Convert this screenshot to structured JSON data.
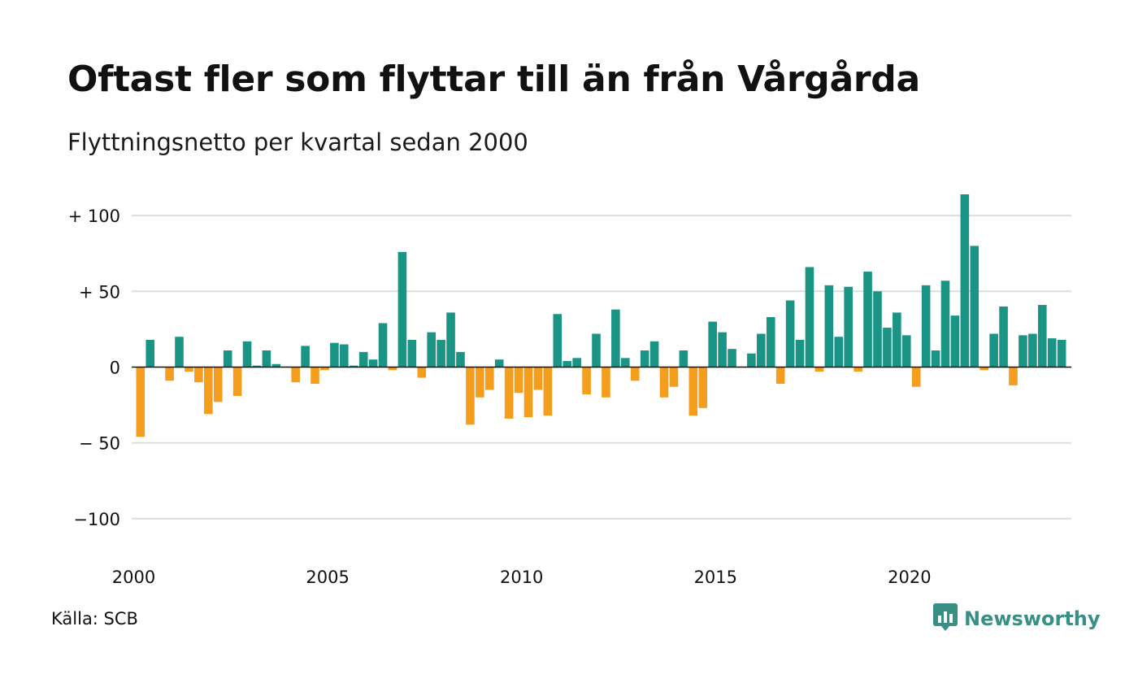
{
  "title": "Oftast fler som flyttar till än från Vårgårda",
  "subtitle": "Flyttningsnetto per kvartal sedan 2000",
  "source": "Källa: SCB",
  "brand": {
    "name": "Newsworthy",
    "icon": "newsworthy-logo-icon",
    "color": "#3a8f84"
  },
  "colors": {
    "positive": "#1a9485",
    "negative": "#f59e1e",
    "grid": "#dddddd",
    "zero_line": "#111111"
  },
  "chart_data": {
    "type": "bar",
    "x_start": 2000,
    "periods_per_year": 4,
    "y_ticks": [
      {
        "value": 100,
        "label": "+ 100"
      },
      {
        "value": 50,
        "label": "+  50"
      },
      {
        "value": 0,
        "label": "0"
      },
      {
        "value": -50,
        "label": "− 50"
      },
      {
        "value": -100,
        "label": "−100"
      }
    ],
    "x_ticks": [
      "2000",
      "2005",
      "2010",
      "2015",
      "2020"
    ],
    "ylim": [
      -120,
      120
    ],
    "grid": true,
    "values": [
      -46,
      18,
      0,
      -9,
      20,
      -3,
      -10,
      -31,
      -23,
      11,
      -19,
      17,
      1,
      11,
      2,
      0,
      -10,
      14,
      -11,
      -2,
      16,
      15,
      1,
      10,
      5,
      29,
      -2,
      76,
      18,
      -7,
      23,
      18,
      36,
      10,
      -38,
      -20,
      -15,
      5,
      -34,
      -17,
      -33,
      -15,
      -32,
      35,
      4,
      6,
      -18,
      22,
      -20,
      38,
      6,
      -9,
      11,
      17,
      -20,
      -13,
      11,
      -32,
      -27,
      30,
      23,
      12,
      0,
      9,
      22,
      33,
      -11,
      44,
      18,
      66,
      -3,
      54,
      20,
      53,
      -3,
      63,
      50,
      26,
      36,
      21,
      -13,
      54,
      11,
      57,
      34,
      114,
      80,
      -2,
      22,
      40,
      -12,
      21,
      22,
      41,
      19,
      18
    ]
  }
}
